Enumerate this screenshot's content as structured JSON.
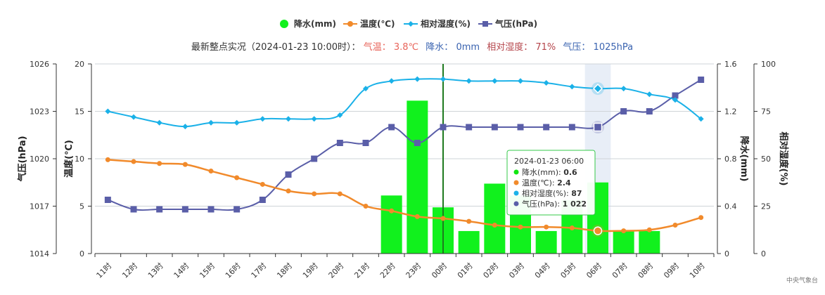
{
  "summary": {
    "prefix": "最新整点实况（2024-01-23 10:00时）：",
    "temp_label": "气温：",
    "temp_value": "3.8℃",
    "precip_label": "降水：",
    "precip_value": "0mm",
    "rh_label": "相对湿度：",
    "rh_value": "71%",
    "pressure_label": "气压：",
    "pressure_value": "1025hPa"
  },
  "tooltip": {
    "title": "2024-01-23 06:00",
    "rows": [
      {
        "label": "降水(mm):",
        "value": "0.6",
        "color": "#11e611"
      },
      {
        "label": "温度(℃):",
        "value": "2.4",
        "color": "#f18a2b"
      },
      {
        "label": "相对湿度(%):",
        "value": "87",
        "color": "#1ab1e8"
      },
      {
        "label": "气压(hPa):",
        "value": "1 022",
        "color": "#5a5ea8"
      }
    ]
  },
  "footer": "中央气象台",
  "colors": {
    "precip": "#11f11d",
    "temperature": "#f18a2b",
    "humidity": "#1ab1e8",
    "pressure": "#5a5ea8",
    "now_line": "#1f7a1f",
    "highlight_band": "#e8eef7"
  },
  "chart_data": {
    "type": "bar",
    "categories": [
      "11时",
      "12时",
      "13时",
      "14时",
      "15时",
      "16时",
      "17时",
      "18时",
      "19时",
      "20时",
      "21时",
      "22时",
      "23时",
      "00时",
      "01时",
      "02时",
      "03时",
      "04时",
      "05时",
      "06时",
      "07时",
      "08时",
      "09时",
      "10时"
    ],
    "series": [
      {
        "name": "降水(mm)",
        "type": "bar",
        "axis": "precip",
        "values": [
          0,
          0,
          0,
          0,
          0,
          0,
          0,
          0,
          0,
          0,
          0,
          0.49,
          1.29,
          0.39,
          0.19,
          0.59,
          0.49,
          0.19,
          0.45,
          0.6,
          0.19,
          0.19,
          0,
          0
        ]
      },
      {
        "name": "温度(℃)",
        "type": "line",
        "axis": "temperature",
        "values": [
          9.9,
          9.7,
          9.5,
          9.4,
          8.7,
          8.0,
          7.3,
          6.6,
          6.3,
          6.3,
          5.0,
          4.5,
          3.9,
          3.7,
          3.4,
          3.0,
          2.8,
          2.8,
          2.7,
          2.4,
          2.4,
          2.5,
          3.0,
          3.8
        ]
      },
      {
        "name": "相对湿度(%)",
        "type": "line",
        "axis": "humidity",
        "values": [
          75,
          72,
          69,
          67,
          69,
          69,
          71,
          71,
          71,
          73,
          87,
          91,
          92,
          92,
          91,
          91,
          91,
          90,
          88,
          87,
          87,
          84,
          81,
          71
        ]
      },
      {
        "name": "气压(hPa)",
        "type": "line",
        "axis": "pressure",
        "values": [
          1017.4,
          1016.8,
          1016.8,
          1016.8,
          1016.8,
          1016.8,
          1017.4,
          1019.0,
          1020.0,
          1021.0,
          1021.0,
          1022.0,
          1021.0,
          1022.0,
          1022.0,
          1022.0,
          1022.0,
          1022.0,
          1022.0,
          1022.0,
          1023.0,
          1023.0,
          1024.0,
          1025.0
        ]
      }
    ],
    "axes": {
      "pressure": {
        "title": "气压(hPa)",
        "min": 1014,
        "max": 1026,
        "ticks": [
          1014,
          1017,
          1020,
          1023,
          1026
        ]
      },
      "temperature": {
        "title": "温度(℃)",
        "min": 0,
        "max": 20,
        "ticks": [
          0,
          5,
          10,
          15,
          20
        ]
      },
      "precip": {
        "title": "降水(mm)",
        "min": 0,
        "max": 1.6,
        "ticks": [
          "0",
          "0.4",
          "0.8",
          "1.2",
          "1.6"
        ]
      },
      "humidity": {
        "title": "相对湿度(%)",
        "min": 0,
        "max": 100,
        "ticks": [
          0,
          25,
          50,
          75,
          100
        ]
      }
    },
    "legend_position": "top-center",
    "grid": true,
    "highlight_category": "06时",
    "now_marker_category": "00时"
  }
}
